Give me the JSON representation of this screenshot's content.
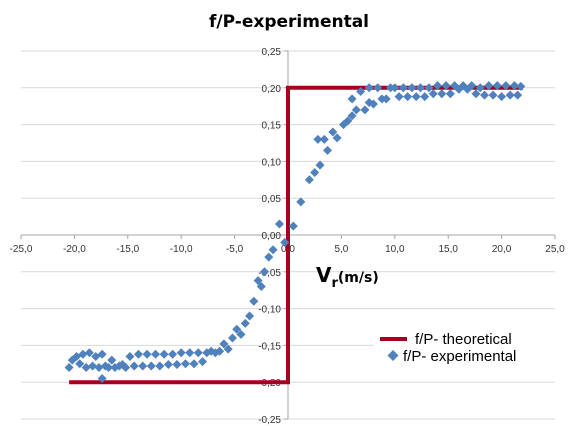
{
  "chart_data": {
    "type": "scatter",
    "title": "f/P-experimental",
    "xlabel_main": "V",
    "xlabel_sub": "r",
    "xlabel_unit": "(m/s)",
    "ylabel": "",
    "xlim": [
      -25,
      25
    ],
    "ylim": [
      -0.25,
      0.25
    ],
    "xticks": [
      "-25,0",
      "-20,0",
      "-15,0",
      "-10,0",
      "-5,0",
      "0,0",
      "5,0",
      "10,0",
      "15,0",
      "20,0",
      "25,0"
    ],
    "yticks": [
      "0,25",
      "0,20",
      "0,15",
      "0,10",
      "0,05",
      "0,00",
      "-0,05",
      "-0,10",
      "-0,15",
      "-0,20",
      "-0,25"
    ],
    "grid": "horizontal",
    "legend_position": "bottom-right",
    "series": [
      {
        "name": "f/P- theoretical",
        "kind": "line",
        "color": "#A50021",
        "points": [
          [
            -20.5,
            -0.2
          ],
          [
            0,
            -0.2
          ],
          [
            0,
            0.2
          ],
          [
            22,
            0.2
          ]
        ]
      },
      {
        "name": "f/P- experimental",
        "kind": "marker",
        "color": "#4F81BD",
        "points": [
          [
            -20.5,
            -0.18
          ],
          [
            -20.2,
            -0.17
          ],
          [
            -19.8,
            -0.165
          ],
          [
            -19.5,
            -0.175
          ],
          [
            -19.2,
            -0.162
          ],
          [
            -18.9,
            -0.18
          ],
          [
            -18.6,
            -0.16
          ],
          [
            -18.3,
            -0.178
          ],
          [
            -18.0,
            -0.165
          ],
          [
            -17.7,
            -0.18
          ],
          [
            -17.4,
            -0.162
          ],
          [
            -17.1,
            -0.178
          ],
          [
            -17.4,
            -0.195
          ],
          [
            -16.8,
            -0.18
          ],
          [
            -16.5,
            -0.17
          ],
          [
            -16.2,
            -0.18
          ],
          [
            -15.8,
            -0.178
          ],
          [
            -15.5,
            -0.176
          ],
          [
            -15.2,
            -0.18
          ],
          [
            -14.8,
            -0.165
          ],
          [
            -14.4,
            -0.178
          ],
          [
            -14.0,
            -0.162
          ],
          [
            -13.6,
            -0.178
          ],
          [
            -13.2,
            -0.162
          ],
          [
            -12.8,
            -0.178
          ],
          [
            -12.4,
            -0.162
          ],
          [
            -12.0,
            -0.178
          ],
          [
            -11.6,
            -0.162
          ],
          [
            -11.2,
            -0.176
          ],
          [
            -10.8,
            -0.162
          ],
          [
            -10.4,
            -0.176
          ],
          [
            -10.0,
            -0.16
          ],
          [
            -9.6,
            -0.175
          ],
          [
            -9.2,
            -0.16
          ],
          [
            -8.8,
            -0.175
          ],
          [
            -8.4,
            -0.16
          ],
          [
            -8.0,
            -0.172
          ],
          [
            -7.6,
            -0.16
          ],
          [
            -7.2,
            -0.158
          ],
          [
            -6.8,
            -0.16
          ],
          [
            -6.4,
            -0.158
          ],
          [
            -6.0,
            -0.148
          ],
          [
            -5.6,
            -0.155
          ],
          [
            -5.2,
            -0.14
          ],
          [
            -4.8,
            -0.128
          ],
          [
            -4.4,
            -0.135
          ],
          [
            -4.0,
            -0.12
          ],
          [
            -3.6,
            -0.11
          ],
          [
            -3.2,
            -0.09
          ],
          [
            -2.8,
            -0.062
          ],
          [
            -2.5,
            -0.07
          ],
          [
            -2.2,
            -0.05
          ],
          [
            -1.8,
            -0.03
          ],
          [
            -1.4,
            -0.02
          ],
          [
            -0.8,
            0.015
          ],
          [
            -0.3,
            -0.01
          ],
          [
            0.5,
            0.012
          ],
          [
            1.2,
            0.045
          ],
          [
            2.0,
            0.075
          ],
          [
            2.5,
            0.085
          ],
          [
            3.0,
            0.095
          ],
          [
            2.8,
            0.13
          ],
          [
            3.4,
            0.13
          ],
          [
            3.7,
            0.115
          ],
          [
            4.2,
            0.14
          ],
          [
            4.6,
            0.132
          ],
          [
            5.2,
            0.15
          ],
          [
            5.6,
            0.155
          ],
          [
            6.0,
            0.162
          ],
          [
            6.0,
            0.185
          ],
          [
            6.4,
            0.17
          ],
          [
            6.8,
            0.195
          ],
          [
            7.2,
            0.17
          ],
          [
            7.6,
            0.2
          ],
          [
            7.6,
            0.18
          ],
          [
            8.0,
            0.178
          ],
          [
            8.4,
            0.2
          ],
          [
            8.8,
            0.185
          ],
          [
            9.2,
            0.185
          ],
          [
            9.6,
            0.2
          ],
          [
            10.0,
            0.2
          ],
          [
            10.4,
            0.188
          ],
          [
            10.8,
            0.2
          ],
          [
            11.2,
            0.188
          ],
          [
            11.6,
            0.2
          ],
          [
            12.0,
            0.188
          ],
          [
            12.4,
            0.2
          ],
          [
            12.8,
            0.188
          ],
          [
            13.2,
            0.2
          ],
          [
            13.6,
            0.192
          ],
          [
            14.0,
            0.203
          ],
          [
            14.4,
            0.192
          ],
          [
            14.8,
            0.203
          ],
          [
            15.2,
            0.192
          ],
          [
            15.6,
            0.203
          ],
          [
            16.0,
            0.198
          ],
          [
            16.4,
            0.203
          ],
          [
            16.8,
            0.198
          ],
          [
            17.2,
            0.203
          ],
          [
            17.6,
            0.192
          ],
          [
            18.0,
            0.2
          ],
          [
            18.4,
            0.19
          ],
          [
            18.8,
            0.203
          ],
          [
            19.2,
            0.19
          ],
          [
            19.6,
            0.203
          ],
          [
            20.0,
            0.188
          ],
          [
            20.4,
            0.203
          ],
          [
            20.8,
            0.19
          ],
          [
            21.2,
            0.203
          ],
          [
            21.5,
            0.19
          ],
          [
            21.8,
            0.202
          ]
        ]
      }
    ]
  }
}
